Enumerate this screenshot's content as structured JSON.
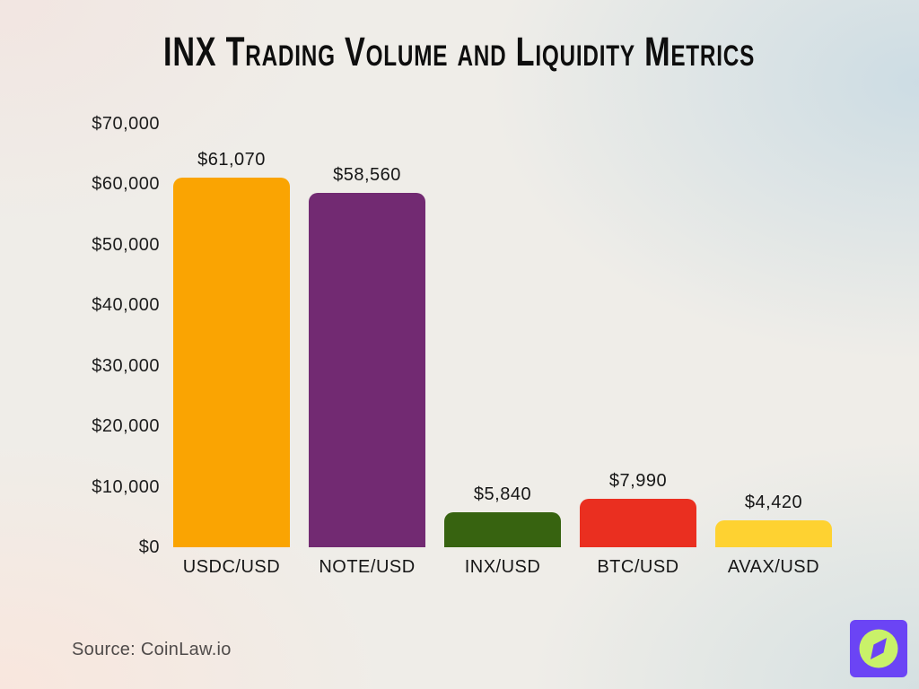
{
  "title": "INX Trading Volume and Liquidity Metrics",
  "source": "Source: CoinLaw.io",
  "chart_data": {
    "type": "bar",
    "title": "INX Trading Volume and Liquidity Metrics",
    "categories": [
      "USDC/USD",
      "NOTE/USD",
      "INX/USD",
      "BTC/USD",
      "AVAX/USD"
    ],
    "values": [
      61070,
      58560,
      5840,
      7990,
      4420
    ],
    "value_labels": [
      "$61,070",
      "$58,560",
      "$5,840",
      "$7,990",
      "$4,420"
    ],
    "bar_colors": [
      "#FAA402",
      "#722A72",
      "#376310",
      "#EA2F20",
      "#FED231"
    ],
    "xlabel": "",
    "ylabel": "",
    "ylim": [
      0,
      70000
    ],
    "ytick_interval": 10000,
    "ytick_labels": [
      "$0",
      "$10,000",
      "$20,000",
      "$30,000",
      "$40,000",
      "$50,000",
      "$60,000",
      "$70,000"
    ],
    "grid": false,
    "legend": false,
    "bar_corner_radius": 10
  },
  "logo": {
    "name": "coinlaw-compass-logo",
    "bg_color": "#6B44F5",
    "circle_color": "#C9F169"
  },
  "colors": {
    "title_text": "#0e0e0e",
    "axis_text": "#1c1c1c",
    "source_text": "#4f4b4a"
  }
}
